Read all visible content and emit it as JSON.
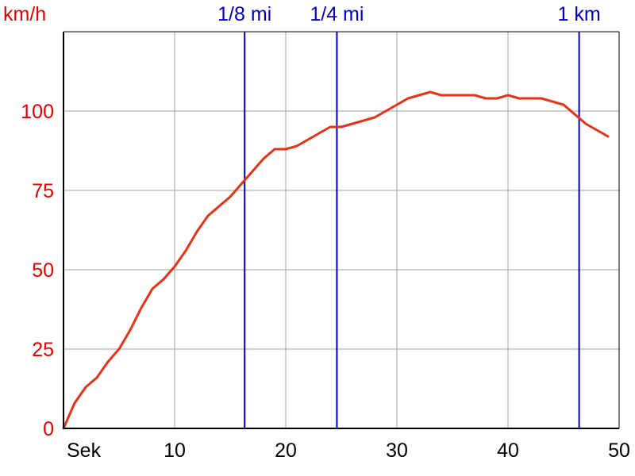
{
  "chart_data": {
    "type": "line",
    "ylabel": "km/h",
    "xlabel": "Sek",
    "xlim": [
      0,
      50
    ],
    "ylim": [
      0,
      125
    ],
    "x_ticks": [
      10,
      20,
      30,
      40,
      50
    ],
    "y_ticks": [
      0,
      25,
      50,
      75,
      100
    ],
    "grid": true,
    "colors": {
      "series": "#e63318",
      "markers": "#0000cc",
      "grid": "#a0a0a0",
      "y_tick_labels": "#e60000"
    },
    "markers": [
      {
        "label": "1/8 mi",
        "x": 16.3
      },
      {
        "label": "1/4 mi",
        "x": 24.6
      },
      {
        "label": "1 km",
        "x": 46.4
      }
    ],
    "series": [
      {
        "x": [
          0,
          1,
          2,
          3,
          4,
          5,
          6,
          7,
          8,
          9,
          10,
          11,
          12,
          13,
          14,
          15,
          16,
          17,
          18,
          19,
          20,
          21,
          22,
          23,
          24,
          25,
          26,
          27,
          28,
          29,
          30,
          31,
          32,
          33,
          34,
          35,
          36,
          37,
          38,
          39,
          40,
          41,
          42,
          43,
          44,
          45,
          46,
          47,
          48,
          49
        ],
        "values": [
          0,
          8,
          13,
          16,
          21,
          25,
          31,
          38,
          44,
          47,
          51,
          56,
          62,
          67,
          70,
          73,
          77,
          81,
          85,
          88,
          88,
          89,
          91,
          93,
          95,
          95,
          96,
          97,
          98,
          100,
          102,
          104,
          105,
          106,
          105,
          105,
          105,
          105,
          104,
          104,
          105,
          104,
          104,
          104,
          103,
          102,
          99,
          96,
          94,
          92
        ]
      }
    ]
  }
}
